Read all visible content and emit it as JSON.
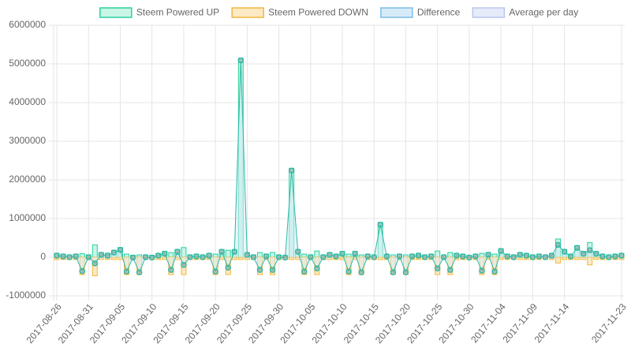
{
  "chart_data": {
    "type": "bar_line",
    "categories": [
      "2017-08-26",
      null,
      null,
      null,
      null,
      "2017-08-31",
      null,
      null,
      null,
      null,
      "2017-09-05",
      null,
      null,
      null,
      null,
      "2017-09-10",
      null,
      null,
      null,
      null,
      "2017-09-15",
      null,
      null,
      null,
      null,
      "2017-09-20",
      null,
      null,
      null,
      null,
      "2017-09-25",
      null,
      null,
      null,
      null,
      "2017-09-30",
      null,
      null,
      null,
      null,
      "2017-10-05",
      null,
      null,
      null,
      null,
      "2017-10-10",
      null,
      null,
      null,
      null,
      "2017-10-15",
      null,
      null,
      null,
      null,
      "2017-10-20",
      null,
      null,
      null,
      null,
      "2017-10-25",
      null,
      null,
      null,
      null,
      "2017-10-30",
      null,
      null,
      null,
      null,
      "2017-11-04",
      null,
      null,
      null,
      null,
      "2017-11-09",
      null,
      null,
      null,
      null,
      "2017-11-14",
      null,
      null,
      null,
      null,
      null,
      null,
      null,
      null,
      "2017-11-23"
    ],
    "series": [
      {
        "name": "Steem Powered UP",
        "kind": "bar",
        "color": "#2bd1a0",
        "fill": "#c8f5e6",
        "values": [
          100000,
          80000,
          60000,
          80000,
          90000,
          60000,
          320000,
          120000,
          100000,
          180000,
          250000,
          80000,
          50000,
          60000,
          60000,
          50000,
          100000,
          150000,
          120000,
          200000,
          250000,
          60000,
          80000,
          60000,
          100000,
          80000,
          200000,
          180000,
          200000,
          5150000,
          120000,
          60000,
          120000,
          80000,
          120000,
          60000,
          50000,
          2300000,
          200000,
          80000,
          60000,
          160000,
          60000,
          120000,
          80000,
          150000,
          80000,
          150000,
          60000,
          80000,
          60000,
          900000,
          80000,
          60000,
          80000,
          60000,
          80000,
          100000,
          60000,
          80000,
          160000,
          60000,
          120000,
          100000,
          80000,
          50000,
          80000,
          100000,
          120000,
          80000,
          220000,
          80000,
          60000,
          120000,
          100000,
          60000,
          80000,
          60000,
          100000,
          470000,
          200000,
          80000,
          300000,
          150000,
          380000,
          150000,
          80000,
          60000,
          80000,
          100000
        ]
      },
      {
        "name": "Steem Powered DOWN",
        "kind": "bar",
        "color": "#f0b840",
        "fill": "#fde9c3",
        "values": [
          -60000,
          -60000,
          -60000,
          -60000,
          -450000,
          -60000,
          -480000,
          -60000,
          -60000,
          -60000,
          -60000,
          -450000,
          -60000,
          -450000,
          -60000,
          -60000,
          -60000,
          -60000,
          -450000,
          -60000,
          -450000,
          -60000,
          -60000,
          -60000,
          -60000,
          -450000,
          -60000,
          -450000,
          -60000,
          -60000,
          -60000,
          -60000,
          -450000,
          -60000,
          -450000,
          -60000,
          -60000,
          -60000,
          -60000,
          -450000,
          -60000,
          -450000,
          -60000,
          -60000,
          -60000,
          -60000,
          -450000,
          -60000,
          -450000,
          -60000,
          -60000,
          -60000,
          -60000,
          -450000,
          -60000,
          -450000,
          -60000,
          -60000,
          -60000,
          -60000,
          -450000,
          -60000,
          -450000,
          -60000,
          -60000,
          -60000,
          -60000,
          -450000,
          -60000,
          -450000,
          -60000,
          -60000,
          -60000,
          -60000,
          -60000,
          -60000,
          -60000,
          -60000,
          -60000,
          -150000,
          -60000,
          -60000,
          -60000,
          -60000,
          -200000,
          -60000,
          -60000,
          -60000,
          -60000,
          -60000
        ]
      },
      {
        "name": "Difference",
        "kind": "line",
        "color": "#7cbde6",
        "fill": "#d6ebf8",
        "line_color": "#2fb8a6",
        "values": [
          40000,
          20000,
          0,
          20000,
          -360000,
          0,
          -160000,
          60000,
          40000,
          120000,
          190000,
          -370000,
          -10000,
          -390000,
          0,
          -10000,
          40000,
          90000,
          -330000,
          140000,
          -200000,
          0,
          20000,
          0,
          40000,
          -370000,
          140000,
          -270000,
          140000,
          5090000,
          60000,
          0,
          -330000,
          20000,
          -330000,
          0,
          -10000,
          2240000,
          140000,
          -370000,
          0,
          -290000,
          0,
          60000,
          20000,
          90000,
          -370000,
          90000,
          -390000,
          20000,
          0,
          840000,
          20000,
          -390000,
          20000,
          -390000,
          20000,
          40000,
          0,
          20000,
          -290000,
          0,
          -330000,
          40000,
          20000,
          -10000,
          20000,
          -350000,
          60000,
          -370000,
          160000,
          20000,
          0,
          60000,
          40000,
          0,
          20000,
          0,
          40000,
          320000,
          140000,
          20000,
          240000,
          90000,
          180000,
          90000,
          20000,
          0,
          20000,
          40000
        ]
      },
      {
        "name": "Average per day",
        "kind": "none",
        "color": "#b8c6ee",
        "fill": "#e6ebfa",
        "values": [
          null,
          null,
          null,
          null,
          null,
          null,
          null,
          null,
          null,
          null,
          null,
          null,
          null,
          null,
          null,
          null,
          null,
          null,
          null,
          null,
          null,
          null,
          null,
          null,
          null,
          null,
          null,
          null,
          null,
          null,
          null,
          null,
          null,
          null,
          null,
          null,
          null,
          null,
          null,
          null,
          null,
          null,
          null,
          null,
          null,
          null,
          null,
          null,
          null,
          null,
          null,
          null,
          null,
          null,
          null,
          null,
          null,
          null,
          null,
          null,
          null,
          null,
          null,
          null,
          null,
          null,
          null,
          null,
          null,
          null,
          null,
          null,
          null,
          null,
          null,
          null,
          null,
          null,
          null,
          null,
          null,
          null,
          null,
          null,
          null,
          null,
          null,
          null,
          null,
          null
        ]
      }
    ],
    "ylim": [
      -1000000,
      6000000
    ],
    "yticks": [
      -1000000,
      0,
      1000000,
      2000000,
      3000000,
      4000000,
      5000000,
      6000000
    ],
    "grid": true,
    "legend": "top"
  }
}
